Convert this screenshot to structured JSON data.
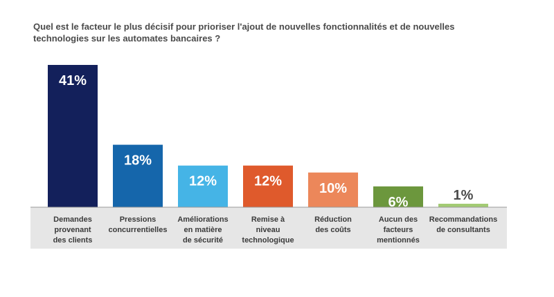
{
  "chart_data": {
    "type": "bar",
    "title": "Quel est le facteur le plus décisif pour prioriser l'ajout de nouvelles fonctionnalités et de nouvelles technologies sur les automates bancaires ?",
    "categories": [
      [
        "Demandes",
        "provenant",
        "des clients"
      ],
      [
        "Pressions",
        "concurrentielles"
      ],
      [
        "Améliorations",
        "en matière",
        "de sécurité"
      ],
      [
        "Remise à",
        "niveau",
        "technologique"
      ],
      [
        "Réduction",
        "des coûts"
      ],
      [
        "Aucun des",
        "facteurs",
        "mentionnés"
      ],
      [
        "Recommandations",
        "de consultants"
      ]
    ],
    "values": [
      41,
      18,
      12,
      12,
      10,
      6,
      1
    ],
    "value_labels": [
      "41%",
      "18%",
      "12%",
      "12%",
      "10%",
      "6%",
      "1%"
    ],
    "colors": [
      "#13205b",
      "#1566ab",
      "#45b4e6",
      "#df5a2c",
      "#ec875a",
      "#6c973d",
      "#a3cb73"
    ],
    "label_colors": [
      "#ffffff",
      "#ffffff",
      "#ffffff",
      "#ffffff",
      "#ffffff",
      "#ffffff",
      "#4a4a4a"
    ],
    "label_band_color": "#e6e6e6",
    "ylim": [
      0,
      41
    ],
    "xlabel": "",
    "ylabel": "",
    "grid": false,
    "legend": "none"
  }
}
